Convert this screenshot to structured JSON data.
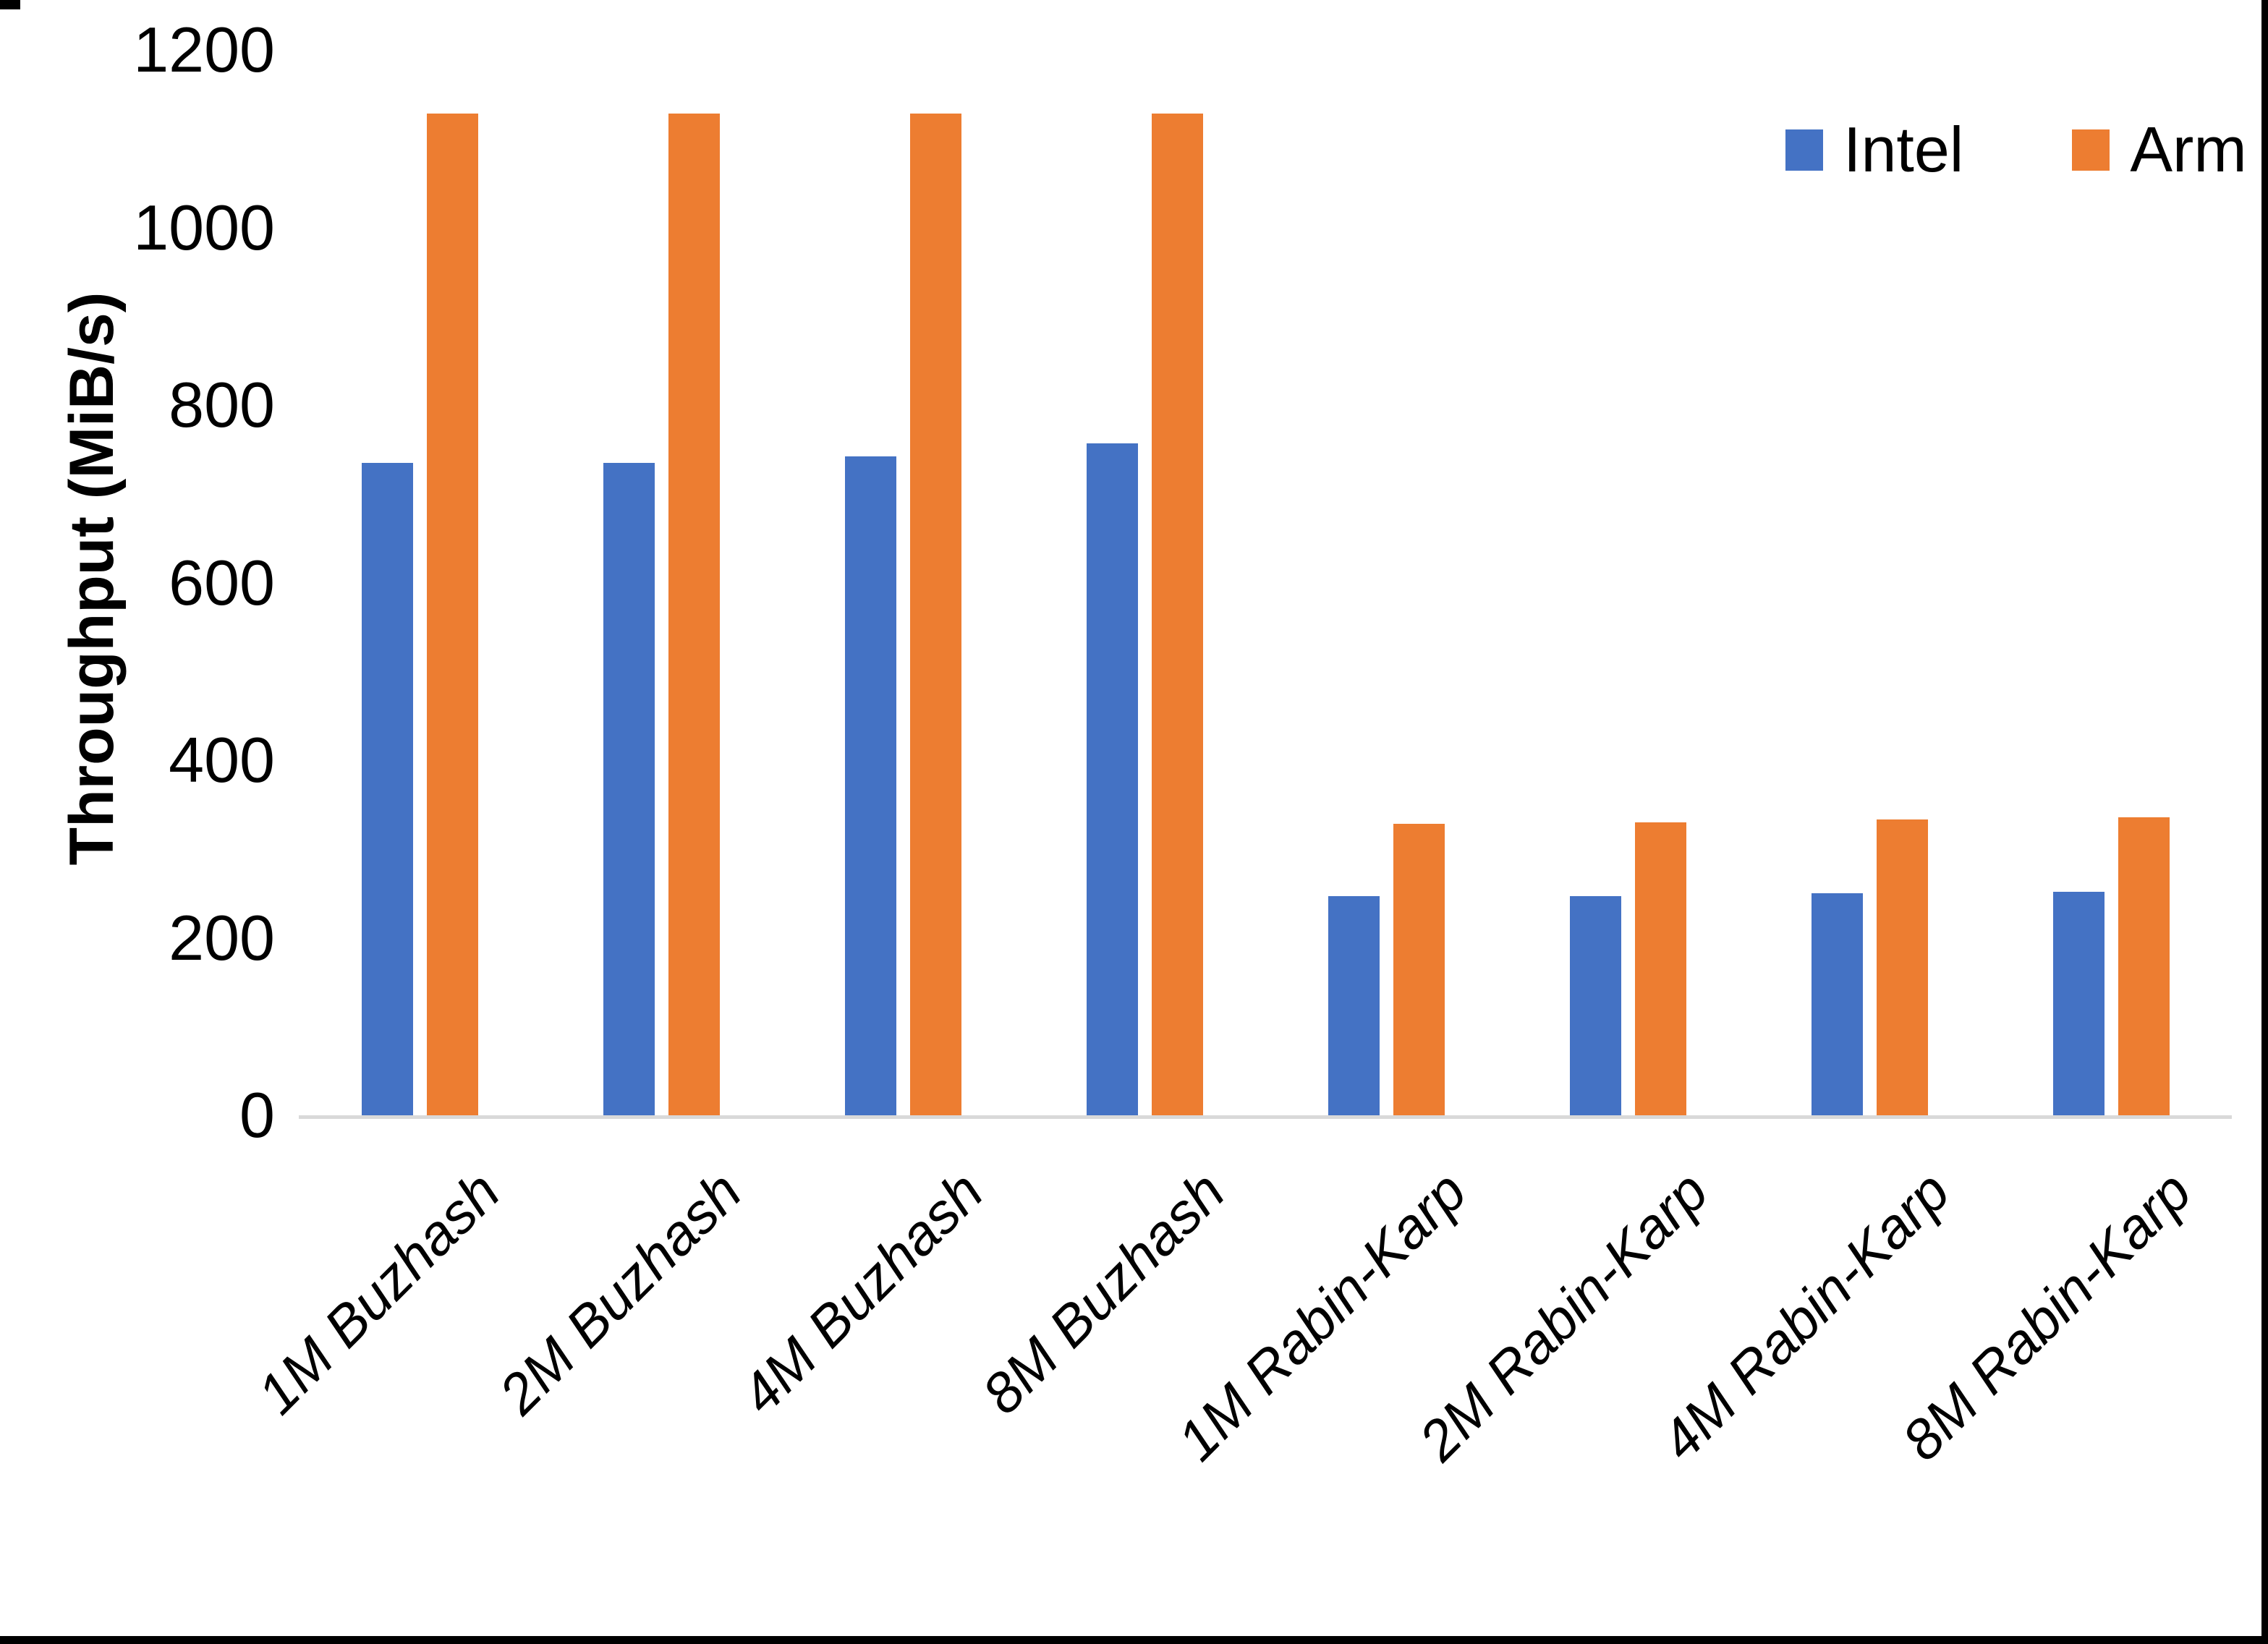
{
  "figure": {
    "background": "#ffffff",
    "border_color": "#000000",
    "baseline_color": "#d9d9d9"
  },
  "y_axis": {
    "title": "Throughput (MiB/s)",
    "ticks": [
      0,
      200,
      400,
      600,
      800,
      1000,
      1200
    ]
  },
  "legend": {
    "items": [
      {
        "label": "Intel",
        "color": "#4472c4"
      },
      {
        "label": "Arm",
        "color": "#ed7d31"
      }
    ]
  },
  "chart_data": {
    "type": "bar",
    "title": "",
    "xlabel": "",
    "ylabel": "Throughput (MiB/s)",
    "ylim": [
      0,
      1200
    ],
    "grid": false,
    "legend_position": "top-right",
    "categories": [
      "1M Buzhash",
      "2M Buzhash",
      "4M Buzhash",
      "8M Buzhash",
      "1M Rabin-Karp",
      "2M Rabin-Karp",
      "4M Rabin-Karp",
      "8M Rabin-Karp"
    ],
    "series": [
      {
        "name": "Intel",
        "color": "#4472c4",
        "values": [
          735,
          735,
          742,
          757,
          247,
          247,
          250,
          252
        ]
      },
      {
        "name": "Arm",
        "color": "#ed7d31",
        "values": [
          1128,
          1128,
          1128,
          1128,
          328,
          330,
          333,
          336
        ]
      }
    ]
  }
}
